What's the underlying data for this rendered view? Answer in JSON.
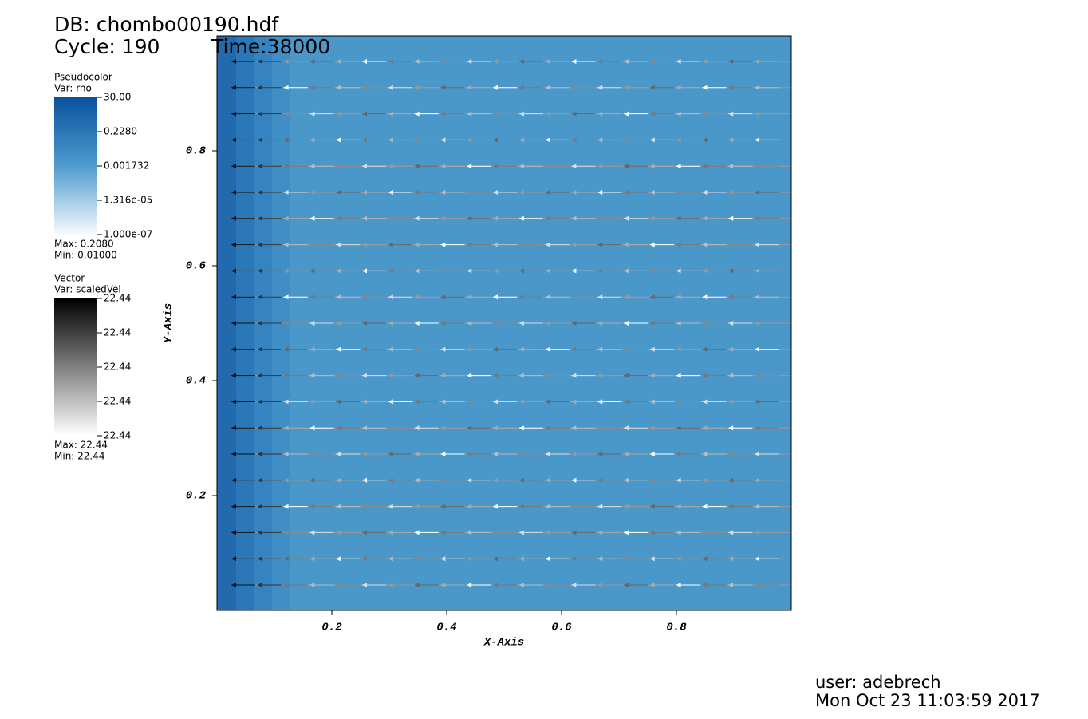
{
  "chart_data": {
    "type": "pseudocolor",
    "database": "DB: chombo00190.hdf",
    "cycle": "Cycle: 190",
    "time": "Time:38000",
    "xlabel": "X-Axis",
    "ylabel": "Y-Axis",
    "xlim": [
      0,
      1
    ],
    "ylim": [
      0,
      1
    ],
    "xticks": [
      0.2,
      0.4,
      0.6,
      0.8
    ],
    "yticks": [
      0.2,
      0.4,
      0.6,
      0.8
    ],
    "pseudocolor_legend": {
      "title": "Pseudocolor",
      "var": "Var: rho",
      "labels": [
        "30.00",
        "0.2280",
        "0.001732",
        "1.316e-05",
        "1.000e-07"
      ],
      "max": "Max:  0.2080",
      "min": "Min:  0.01000"
    },
    "vector_legend": {
      "title": "Vector",
      "var": "Var: scaledVel",
      "labels": [
        "22.44",
        "22.44",
        "22.44",
        "22.44",
        "22.44"
      ],
      "max": "Max:  22.44",
      "min": "Min:  22.44"
    },
    "user": "user: adebrech",
    "date": "Mon Oct 23 11:03:59 2017"
  }
}
